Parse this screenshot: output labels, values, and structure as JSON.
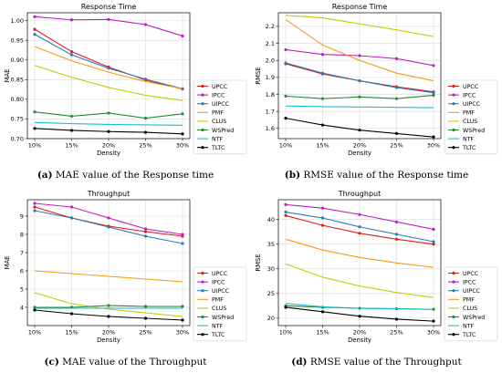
{
  "chart_data": [
    {
      "type": "line",
      "title": "Response Time",
      "xlabel": "Density",
      "ylabel": "MAE",
      "categories": [
        "10%",
        "15%",
        "20%",
        "25%",
        "30%"
      ],
      "ylim": [
        0.7,
        1.02
      ],
      "yticks": [
        "0.70",
        "0.75",
        "0.80",
        "0.85",
        "0.90",
        "0.95",
        "1.00"
      ],
      "grid": true,
      "legend_position": "right",
      "caption_letter": "(a)",
      "caption_text": " MAE value of the Response time",
      "series": [
        {
          "name": "UPCC",
          "color": "#e41a1c",
          "marker": "circle",
          "values": [
            0.978,
            0.921,
            0.882,
            0.849,
            0.826
          ]
        },
        {
          "name": "IPCC",
          "color": "#bf1fbf",
          "marker": "circle",
          "values": [
            1.01,
            1.002,
            1.003,
            0.99,
            0.961
          ]
        },
        {
          "name": "UIPCC",
          "color": "#2b7bba",
          "marker": "circle",
          "values": [
            0.965,
            0.913,
            0.879,
            0.851,
            0.827
          ]
        },
        {
          "name": "PMF",
          "color": "#f39c12",
          "marker": "none",
          "values": [
            0.934,
            0.898,
            0.869,
            0.845,
            0.827
          ]
        },
        {
          "name": "CLUS",
          "color": "#c8c800",
          "marker": "none",
          "values": [
            0.886,
            0.856,
            0.83,
            0.81,
            0.797
          ]
        },
        {
          "name": "WSPred",
          "color": "#1f8a3a",
          "marker": "circle",
          "values": [
            0.768,
            0.757,
            0.765,
            0.752,
            0.763
          ]
        },
        {
          "name": "NTF",
          "color": "#17becf",
          "marker": "none",
          "values": [
            0.741,
            0.738,
            0.736,
            0.735,
            0.734
          ]
        },
        {
          "name": "TLTC",
          "color": "#000000",
          "marker": "circle",
          "values": [
            0.726,
            0.721,
            0.718,
            0.716,
            0.712
          ]
        }
      ]
    },
    {
      "type": "line",
      "title": "Response Time",
      "xlabel": "Density",
      "ylabel": "RMSE",
      "categories": [
        "10%",
        "15%",
        "20%",
        "25%",
        "30%"
      ],
      "ylim": [
        1.54,
        2.28
      ],
      "yticks": [
        "1.6",
        "1.7",
        "1.8",
        "1.9",
        "2.0",
        "2.1",
        "2.2"
      ],
      "grid": true,
      "legend_position": "right",
      "caption_letter": "(b)",
      "caption_text": " RMSE value of the Response time",
      "series": [
        {
          "name": "UPCC",
          "color": "#e41a1c",
          "marker": "circle",
          "values": [
            1.98,
            1.92,
            1.88,
            1.845,
            1.815
          ]
        },
        {
          "name": "IPCC",
          "color": "#bf1fbf",
          "marker": "circle",
          "values": [
            2.063,
            2.035,
            2.028,
            2.01,
            1.97
          ]
        },
        {
          "name": "UIPCC",
          "color": "#2b7bba",
          "marker": "circle",
          "values": [
            1.985,
            1.925,
            1.88,
            1.84,
            1.81
          ]
        },
        {
          "name": "PMF",
          "color": "#f39c12",
          "marker": "none",
          "values": [
            2.24,
            2.09,
            2.0,
            1.925,
            1.88
          ]
        },
        {
          "name": "CLUS",
          "color": "#c8c800",
          "marker": "none",
          "values": [
            2.265,
            2.25,
            2.215,
            2.18,
            2.14
          ]
        },
        {
          "name": "WSPred",
          "color": "#1f8a3a",
          "marker": "circle",
          "values": [
            1.79,
            1.775,
            1.785,
            1.775,
            1.795
          ]
        },
        {
          "name": "NTF",
          "color": "#17becf",
          "marker": "none",
          "values": [
            1.732,
            1.728,
            1.726,
            1.724,
            1.722
          ]
        },
        {
          "name": "TLTC",
          "color": "#000000",
          "marker": "circle",
          "values": [
            1.66,
            1.62,
            1.59,
            1.57,
            1.55
          ]
        }
      ]
    },
    {
      "type": "line",
      "title": "Throughput",
      "xlabel": "Density",
      "ylabel": "MAE",
      "categories": [
        "10%",
        "15%",
        "20%",
        "25%",
        "30%"
      ],
      "ylim": [
        3.0,
        9.9
      ],
      "yticks": [
        "4",
        "5",
        "6",
        "7",
        "8",
        "9"
      ],
      "grid": true,
      "legend_position": "right",
      "caption_letter": "(c)",
      "caption_text": " MAE value of the Throughput",
      "series": [
        {
          "name": "UPCC",
          "color": "#e41a1c",
          "marker": "circle",
          "values": [
            9.5,
            8.9,
            8.45,
            8.15,
            7.9
          ]
        },
        {
          "name": "IPCC",
          "color": "#bf1fbf",
          "marker": "circle",
          "values": [
            9.7,
            9.5,
            8.9,
            8.3,
            8.0
          ]
        },
        {
          "name": "UIPCC",
          "color": "#2b7bba",
          "marker": "circle",
          "values": [
            9.3,
            8.9,
            8.4,
            7.9,
            7.5
          ]
        },
        {
          "name": "PMF",
          "color": "#f39c12",
          "marker": "none",
          "values": [
            6.0,
            5.85,
            5.7,
            5.55,
            5.4
          ]
        },
        {
          "name": "CLUS",
          "color": "#c8c800",
          "marker": "none",
          "values": [
            4.8,
            4.2,
            3.9,
            3.7,
            3.5
          ]
        },
        {
          "name": "WSPred",
          "color": "#1f8a3a",
          "marker": "circle",
          "values": [
            4.0,
            4.0,
            4.1,
            4.05,
            4.05
          ]
        },
        {
          "name": "NTF",
          "color": "#17becf",
          "marker": "none",
          "values": [
            3.95,
            3.95,
            3.95,
            3.95,
            3.95
          ]
        },
        {
          "name": "TLTC",
          "color": "#000000",
          "marker": "circle",
          "values": [
            3.85,
            3.65,
            3.5,
            3.4,
            3.3
          ]
        }
      ]
    },
    {
      "type": "line",
      "title": "Throughput",
      "xlabel": "Density",
      "ylabel": "RMSE",
      "categories": [
        "10%",
        "15%",
        "20%",
        "25%",
        "30%"
      ],
      "ylim": [
        18.5,
        44.0
      ],
      "yticks": [
        "20",
        "25",
        "30",
        "35",
        "40"
      ],
      "grid": true,
      "legend_position": "right",
      "caption_letter": "(d)",
      "caption_text": " RMSE value of the Throughput",
      "series": [
        {
          "name": "UPCC",
          "color": "#e41a1c",
          "marker": "circle",
          "values": [
            40.8,
            38.8,
            37.2,
            36.0,
            35.0
          ]
        },
        {
          "name": "IPCC",
          "color": "#bf1fbf",
          "marker": "circle",
          "values": [
            43.0,
            42.3,
            41.0,
            39.5,
            38.0
          ]
        },
        {
          "name": "UIPCC",
          "color": "#2b7bba",
          "marker": "circle",
          "values": [
            41.5,
            40.3,
            38.5,
            37.0,
            35.5
          ]
        },
        {
          "name": "PMF",
          "color": "#f39c12",
          "marker": "none",
          "values": [
            36.0,
            33.8,
            32.3,
            31.2,
            30.3
          ]
        },
        {
          "name": "CLUS",
          "color": "#c8c800",
          "marker": "none",
          "values": [
            31.0,
            28.3,
            26.5,
            25.2,
            24.2
          ]
        },
        {
          "name": "WSPred",
          "color": "#1f8a3a",
          "marker": "circle",
          "values": [
            22.5,
            22.2,
            22.0,
            21.9,
            21.8
          ]
        },
        {
          "name": "NTF",
          "color": "#17becf",
          "marker": "none",
          "values": [
            23.0,
            22.3,
            22.0,
            21.9,
            21.8
          ]
        },
        {
          "name": "TLTC",
          "color": "#000000",
          "marker": "circle",
          "values": [
            22.2,
            21.3,
            20.4,
            19.8,
            19.4
          ]
        }
      ]
    }
  ]
}
